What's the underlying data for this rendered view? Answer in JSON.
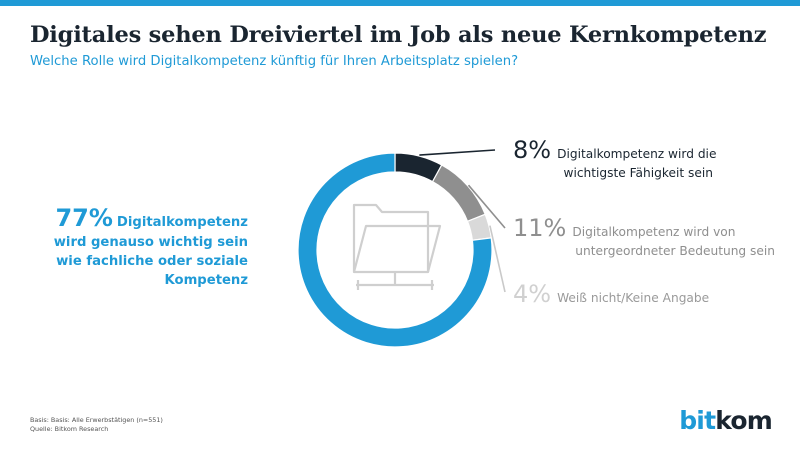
{
  "header": {
    "title": "Digitales sehen Dreiviertel im Job als neue Kernkompetenz",
    "subtitle": "Welche Rolle wird Digitalkompetenz künftig für Ihren Arbeitsplatz spielen?"
  },
  "colors": {
    "accent": "#1f9ad6",
    "dark": "#1a2530",
    "mid_gray": "#8f8f8f",
    "light_gray": "#d9d9d9",
    "label_gray": "#9a9a9a",
    "icon_gray": "#cfcfcf"
  },
  "chart_data": {
    "type": "pie",
    "donut": true,
    "categories": [
      "Digitalkompetenz wird genauso wichtig sein wie fachliche oder soziale Kompetenz",
      "Digitalkompetenz wird die wichtigste Fähigkeit sein",
      "Digitalkompetenz wird von untergeordneter Bedeutung sein",
      "Weiß nicht/Keine Angabe"
    ],
    "values": [
      77,
      8,
      11,
      4
    ],
    "labels": [
      {
        "pct": "77%",
        "lines": [
          "Digitalkompetenz",
          "wird genauso wichtig sein",
          "wie fachliche oder soziale",
          "Kompetenz"
        ]
      },
      {
        "pct": "8%",
        "lines": [
          "Digitalkompetenz wird die",
          "wichtigste Fähigkeit sein"
        ]
      },
      {
        "pct": "11%",
        "lines": [
          "Digitalkompetenz wird von",
          "untergeordneter Bedeutung sein"
        ]
      },
      {
        "pct": "4%",
        "lines": [
          "Weiß nicht/Keine Angabe"
        ]
      }
    ],
    "colors": [
      "#1f9ad6",
      "#1a2530",
      "#8f8f8f",
      "#d9d9d9"
    ],
    "title": "Digitales sehen Dreiviertel im Job als neue Kernkompetenz"
  },
  "footer": {
    "basis": "Basis: Basis: Alle Erwerbstätigen (n=551)",
    "source": "Quelle: Bitkom Research"
  },
  "logo": {
    "part1": "bit",
    "part2": "kom"
  }
}
